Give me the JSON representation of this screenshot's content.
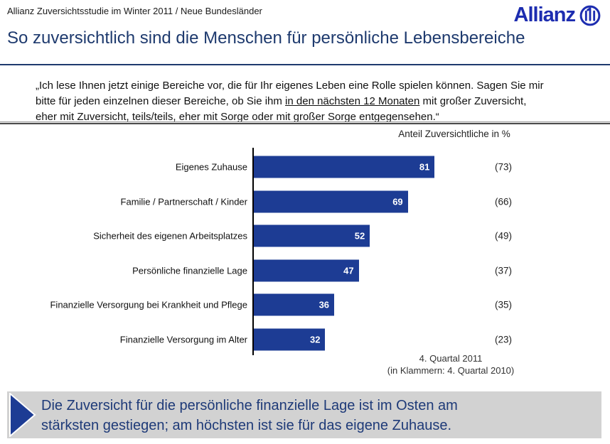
{
  "header": {
    "subtitle": "Allianz Zuversichtsstudie im Winter 2011 / Neue Bundesländer",
    "logo_text": "Allianz"
  },
  "title": "So zuversichtlich sind die Menschen für persönliche Lebensbereiche",
  "quote": {
    "line1": "„Ich lese Ihnen jetzt einige Bereiche vor, die für Ihr eigenes Leben eine Rolle spielen können. Sagen Sie mir",
    "line2_pre": "bitte für jeden einzelnen dieser Bereiche, ob Sie ihm ",
    "line2_underlined": "in den nächsten 12 Monaten",
    "line2_post": " mit großer Zuversicht,",
    "line3": "eher mit Zuversicht, teils/teils, eher mit Sorge oder mit großer Sorge entgegensehen.“"
  },
  "chart_data": {
    "type": "bar",
    "orientation": "horizontal",
    "axis_label": "Anteil Zuversichtliche in %",
    "categories": [
      "Eigenes Zuhause",
      "Familie / Partnerschaft / Kinder",
      "Sicherheit des eigenen Arbeitsplatzes",
      "Persönliche finanzielle Lage",
      "Finanzielle Versorgung bei Krankheit und Pflege",
      "Finanzielle Versorgung im Alter"
    ],
    "values": [
      81,
      69,
      52,
      47,
      36,
      32
    ],
    "previous_values": [
      "(73)",
      "(66)",
      "(49)",
      "(37)",
      "(35)",
      "(23)"
    ],
    "value_unit": "%",
    "bar_color": "#1d3c94",
    "value_label_color": "#ffffff",
    "xlim": [
      0,
      100
    ],
    "grid": false,
    "legend": false,
    "footnote_line1": "4. Quartal 2011",
    "footnote_line2": "(in Klammern: 4. Quartal 2010)"
  },
  "callout": {
    "line1": "Die Zuversicht für die persönliche finanzielle Lage ist im Osten am",
    "line2": "stärksten gestiegen; am höchsten ist sie für das eigene Zuhause.",
    "background": "#d2d2d2",
    "text_color": "#1e3a78"
  },
  "colors": {
    "title_navy": "#1e3a6e",
    "logo_blue": "#1d2db0",
    "bar_blue": "#1d3c94",
    "axis_black": "#000000"
  }
}
